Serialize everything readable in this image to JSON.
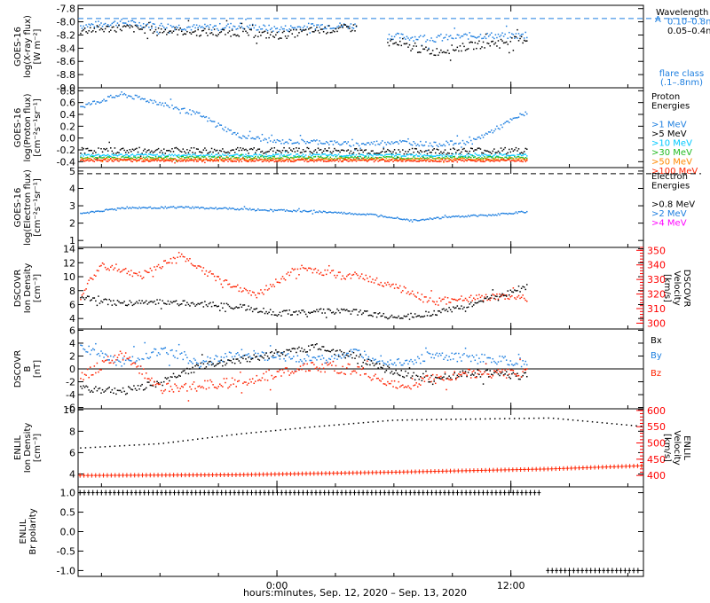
{
  "xlabel": "hours:minutes, Sep. 12, 2020 – Sep. 13, 2020",
  "x_ticks": [
    {
      "h": 0,
      "label": "0:00"
    },
    {
      "h": 12,
      "label": "12:00"
    }
  ],
  "x_range_h": [
    -10.2,
    18.8
  ],
  "colors": {
    "black": "#000000",
    "blue": "#1e7fe0",
    "cyan": "#00c8ff",
    "green": "#22bb22",
    "orange": "#ff8800",
    "red": "#ff2200",
    "magenta": "#ff00ff"
  },
  "chart_data": [
    {
      "type": "scatter",
      "id": "xray",
      "ylabel": [
        "GOES-16",
        "log(X-ray flux)",
        "[W m⁻²]"
      ],
      "ylim": [
        -9.0,
        -7.75
      ],
      "yticks": [
        -7.8,
        -8.0,
        -8.2,
        -8.4,
        -8.6,
        -8.8,
        -9.0
      ],
      "ytick_labels": [
        "-7.8",
        "-8.0",
        "-8.2",
        "-8.4",
        "-8.6",
        "-8.8",
        "-9.0"
      ],
      "hline": {
        "y": -7.95,
        "color": "blue",
        "dashed": true,
        "label": "A"
      },
      "legend": [
        {
          "text": "Wavelength",
          "color": "black"
        },
        {
          "text": "0.10–0.8nm",
          "color": "blue"
        },
        {
          "text": "0.05–0.4nm",
          "color": "black"
        }
      ],
      "legend2": [
        {
          "text": "flare class",
          "color": "blue"
        },
        {
          "text": "(.1–.8nm)",
          "color": "blue"
        }
      ],
      "series": [
        {
          "color": "blue",
          "gap": [
            4.1,
            5.6
          ],
          "end": 12.8,
          "points": [
            [
              -10,
              -8.05
            ],
            [
              -8,
              -8.0
            ],
            [
              -6,
              -8.05
            ],
            [
              -4,
              -8.08
            ],
            [
              -2,
              -8.05
            ],
            [
              0,
              -8.1
            ],
            [
              2,
              -8.05
            ],
            [
              4,
              -8.05
            ],
            [
              5.6,
              -8.2
            ],
            [
              8,
              -8.25
            ],
            [
              10,
              -8.2
            ],
            [
              12.8,
              -8.2
            ]
          ],
          "jitter": 0.05
        },
        {
          "color": "black",
          "gap": [
            4.1,
            5.6
          ],
          "end": 12.8,
          "points": [
            [
              -10,
              -8.12
            ],
            [
              -8,
              -8.08
            ],
            [
              -6,
              -8.12
            ],
            [
              -4,
              -8.15
            ],
            [
              -2,
              -8.15
            ],
            [
              0,
              -8.2
            ],
            [
              2,
              -8.12
            ],
            [
              4,
              -8.08
            ],
            [
              5.6,
              -8.3
            ],
            [
              8,
              -8.45
            ],
            [
              10,
              -8.35
            ],
            [
              12.8,
              -8.25
            ]
          ],
          "jitter": 0.06
        }
      ]
    },
    {
      "type": "scatter",
      "id": "proton",
      "ylabel": [
        "GOES-16",
        "log(Proton flux)",
        "[cm⁻²s⁻¹sr⁻¹]"
      ],
      "ylim": [
        -0.5,
        0.85
      ],
      "yticks": [
        0.8,
        0.6,
        0.4,
        0.2,
        0.0,
        -0.2,
        -0.4
      ],
      "ytick_labels": [
        "0.8",
        "0.6",
        "0.4",
        "0.2",
        "0.0",
        "-0.2",
        "-0.4"
      ],
      "legend": [
        {
          "text": "Proton",
          "color": "black"
        },
        {
          "text": "Energies",
          "color": "black"
        },
        {
          "text": "",
          "color": "black"
        },
        {
          "text": ">1 MeV",
          "color": "blue"
        },
        {
          "text": ">5 MeV",
          "color": "black"
        },
        {
          "text": ">10 MeV",
          "color": "cyan"
        },
        {
          "text": ">30 MeV",
          "color": "green"
        },
        {
          "text": ">50 MeV",
          "color": "orange"
        },
        {
          "text": ">100 MeV",
          "color": "red"
        }
      ],
      "series": [
        {
          "color": "blue",
          "end": 12.8,
          "points": [
            [
              -10,
              0.55
            ],
            [
              -8,
              0.75
            ],
            [
              -6,
              0.6
            ],
            [
              -4,
              0.4
            ],
            [
              -2,
              0.05
            ],
            [
              0,
              -0.05
            ],
            [
              2,
              -0.05
            ],
            [
              4,
              -0.1
            ],
            [
              6,
              -0.05
            ],
            [
              8,
              -0.1
            ],
            [
              10,
              -0.05
            ],
            [
              12.8,
              0.45
            ]
          ],
          "jitter": 0.04
        },
        {
          "color": "black",
          "end": 12.8,
          "points": [
            [
              -10,
              -0.2
            ],
            [
              -6,
              -0.2
            ],
            [
              -2,
              -0.2
            ],
            [
              2,
              -0.2
            ],
            [
              6,
              -0.22
            ],
            [
              10,
              -0.2
            ],
            [
              12.8,
              -0.2
            ]
          ],
          "jitter": 0.05
        },
        {
          "color": "cyan",
          "end": 12.8,
          "points": [
            [
              -10,
              -0.28
            ],
            [
              12.8,
              -0.28
            ]
          ],
          "jitter": 0.02
        },
        {
          "color": "green",
          "end": 12.8,
          "points": [
            [
              -10,
              -0.32
            ],
            [
              12.8,
              -0.32
            ]
          ],
          "jitter": 0.02
        },
        {
          "color": "orange",
          "end": 12.8,
          "points": [
            [
              -10,
              -0.35
            ],
            [
              12.8,
              -0.35
            ]
          ],
          "jitter": 0.02
        },
        {
          "color": "red",
          "end": 12.8,
          "points": [
            [
              -10,
              -0.37
            ],
            [
              12.8,
              -0.37
            ]
          ],
          "jitter": 0.02
        }
      ]
    },
    {
      "type": "scatter",
      "id": "electron",
      "ylabel": [
        "GOES-16",
        "log(Electron flux)",
        "[cm⁻²s⁻¹sr⁻¹]"
      ],
      "ylim": [
        0.6,
        5.2
      ],
      "yticks": [
        5,
        4,
        3,
        2,
        1
      ],
      "ytick_labels": [
        "5",
        "4",
        "3",
        "2",
        "1"
      ],
      "hline": {
        "y": 4.85,
        "color": "black",
        "dashed": true
      },
      "legend": [
        {
          "text": "Electron",
          "color": "black"
        },
        {
          "text": "Energies",
          "color": "black"
        },
        {
          "text": "",
          "color": "black"
        },
        {
          "text": ">0.8 MeV",
          "color": "black"
        },
        {
          "text": ">2 MeV",
          "color": "blue"
        },
        {
          "text": ">4 MeV",
          "color": "magenta"
        }
      ],
      "series": [
        {
          "color": "blue",
          "end": 12.8,
          "points": [
            [
              -10,
              2.6
            ],
            [
              -8,
              2.9
            ],
            [
              -5,
              2.95
            ],
            [
              -2,
              2.85
            ],
            [
              2,
              2.7
            ],
            [
              5,
              2.5
            ],
            [
              7,
              2.2
            ],
            [
              9,
              2.4
            ],
            [
              11,
              2.5
            ],
            [
              12.8,
              2.7
            ]
          ],
          "jitter": 0.05
        }
      ]
    },
    {
      "type": "scatter",
      "id": "dscovr_density",
      "ylabel": [
        "DSCOVR",
        "Ion Density",
        "[cm⁻³]"
      ],
      "ylim": [
        2.5,
        14.2
      ],
      "yticks": [
        14,
        12,
        10,
        8,
        6,
        4
      ],
      "ytick_labels": [
        "14",
        "12",
        "10",
        "8",
        "6",
        "4"
      ],
      "ylabel_right": [
        "DSCOVR",
        "Velocity",
        "[km/s]"
      ],
      "ylim_right": [
        296,
        352
      ],
      "yticks_right": [
        350,
        340,
        330,
        320,
        310,
        300
      ],
      "ytick_labels_right": [
        "350",
        "340",
        "330",
        "320",
        "310",
        "300"
      ],
      "series": [
        {
          "color": "red",
          "axis": "right",
          "end": 12.8,
          "points": [
            [
              -10,
              322
            ],
            [
              -9,
              340
            ],
            [
              -7,
              333
            ],
            [
              -5,
              347
            ],
            [
              -3,
              330
            ],
            [
              -1,
              320
            ],
            [
              1,
              338
            ],
            [
              4,
              333
            ],
            [
              6,
              326
            ],
            [
              8,
              315
            ],
            [
              10,
              318
            ],
            [
              12.8,
              318
            ]
          ],
          "jitter": 2.5
        },
        {
          "color": "black",
          "axis": "left",
          "end": 12.8,
          "points": [
            [
              -10,
              7
            ],
            [
              -8,
              6.2
            ],
            [
              -6,
              6.5
            ],
            [
              -4,
              6.2
            ],
            [
              -2,
              5.8
            ],
            [
              0,
              4.8
            ],
            [
              2,
              5.2
            ],
            [
              4,
              5.0
            ],
            [
              6,
              4.3
            ],
            [
              8,
              4.8
            ],
            [
              10,
              6.2
            ],
            [
              12.8,
              8.5
            ]
          ],
          "jitter": 0.4
        }
      ]
    },
    {
      "type": "scatter",
      "id": "dscovr_b",
      "ylabel": [
        "DSCOVR",
        "B",
        "[nT]"
      ],
      "ylim": [
        -6.2,
        6.2
      ],
      "yticks": [
        6,
        4,
        2,
        0,
        -2,
        -4,
        -6
      ],
      "ytick_labels": [
        "6",
        "4",
        "2",
        "0",
        "-2",
        "-4",
        "-6"
      ],
      "hline": {
        "y": 0,
        "color": "black",
        "dashed": false
      },
      "legend": [
        {
          "text": "Bx",
          "color": "black"
        },
        {
          "text": "By",
          "color": "blue"
        },
        {
          "text": "Bz",
          "color": "red"
        }
      ],
      "series": [
        {
          "color": "blue",
          "end": 12.8,
          "points": [
            [
              -10,
              3.5
            ],
            [
              -8,
              1
            ],
            [
              -6,
              3
            ],
            [
              -4,
              1
            ],
            [
              -2,
              2.5
            ],
            [
              0,
              2.0
            ],
            [
              2,
              1.5
            ],
            [
              4,
              2.5
            ],
            [
              6,
              1
            ],
            [
              8,
              2
            ],
            [
              10,
              1.8
            ],
            [
              12.8,
              1
            ]
          ],
          "jitter": 0.7
        },
        {
          "color": "black",
          "end": 12.8,
          "points": [
            [
              -10,
              -3
            ],
            [
              -8,
              -3.5
            ],
            [
              -6,
              -2
            ],
            [
              -4,
              0.5
            ],
            [
              -2,
              1.5
            ],
            [
              0,
              2.5
            ],
            [
              2,
              3.5
            ],
            [
              4,
              2
            ],
            [
              6,
              -0.5
            ],
            [
              8,
              -1.5
            ],
            [
              10,
              -0.5
            ],
            [
              12.8,
              -1
            ]
          ],
          "jitter": 0.6
        },
        {
          "color": "red",
          "end": 12.8,
          "points": [
            [
              -10,
              -1
            ],
            [
              -8,
              2.5
            ],
            [
              -6,
              -3
            ],
            [
              -4,
              -2.5
            ],
            [
              -2,
              -2
            ],
            [
              0,
              -0.5
            ],
            [
              2,
              0.5
            ],
            [
              4,
              0
            ],
            [
              6,
              -2.5
            ],
            [
              8,
              -1.5
            ],
            [
              10,
              -0.5
            ],
            [
              12.8,
              -0.5
            ]
          ],
          "jitter": 0.8
        }
      ]
    },
    {
      "type": "scatter",
      "id": "enlil_density",
      "ylabel": [
        "ENLIL",
        "Ion Density",
        "[cm⁻³]"
      ],
      "ylim": [
        2.8,
        10.1
      ],
      "yticks": [
        10,
        8,
        6,
        4
      ],
      "ytick_labels": [
        "10",
        "8",
        "6",
        "4"
      ],
      "ylabel_right": [
        "ENLIL",
        "Velocity",
        "[km/s]"
      ],
      "ylim_right": [
        365,
        605
      ],
      "yticks_right": [
        600,
        550,
        500,
        450,
        400
      ],
      "ytick_labels_right": [
        "600",
        "550",
        "500",
        "450",
        "400"
      ],
      "series": [
        {
          "color": "black",
          "axis": "left",
          "end": 18.8,
          "points": [
            [
              -10,
              6.5
            ],
            [
              -6,
              6.9
            ],
            [
              -2,
              7.8
            ],
            [
              2,
              8.5
            ],
            [
              6,
              9.1
            ],
            [
              10,
              9.2
            ],
            [
              14,
              9.3
            ],
            [
              18.8,
              8.5
            ]
          ],
          "jitter": 0,
          "style": "dots"
        },
        {
          "color": "red",
          "axis": "right",
          "end": 18.8,
          "points": [
            [
              -10,
              400
            ],
            [
              -2,
              402
            ],
            [
              6,
              410
            ],
            [
              14,
              420
            ],
            [
              18.8,
              430
            ]
          ],
          "jitter": 0,
          "style": "plus"
        }
      ]
    },
    {
      "type": "scatter",
      "id": "enlil_polarity",
      "ylabel": [
        "ENLIL",
        "Br polarity"
      ],
      "ylim": [
        -1.15,
        1.15
      ],
      "yticks": [
        1.0,
        0.5,
        0.0,
        -0.5,
        -1.0
      ],
      "ytick_labels": [
        "1.0",
        "0.5",
        "0.0",
        "-0.5",
        "-1.0"
      ],
      "series": [
        {
          "color": "black",
          "end": 18.8,
          "segments": [
            [
              [
                -10.1,
                1.0
              ],
              [
                13.6,
                1.0
              ]
            ],
            [
              [
                13.9,
                -1.0
              ],
              [
                18.7,
                -1.0
              ]
            ]
          ],
          "style": "plus"
        }
      ]
    }
  ]
}
